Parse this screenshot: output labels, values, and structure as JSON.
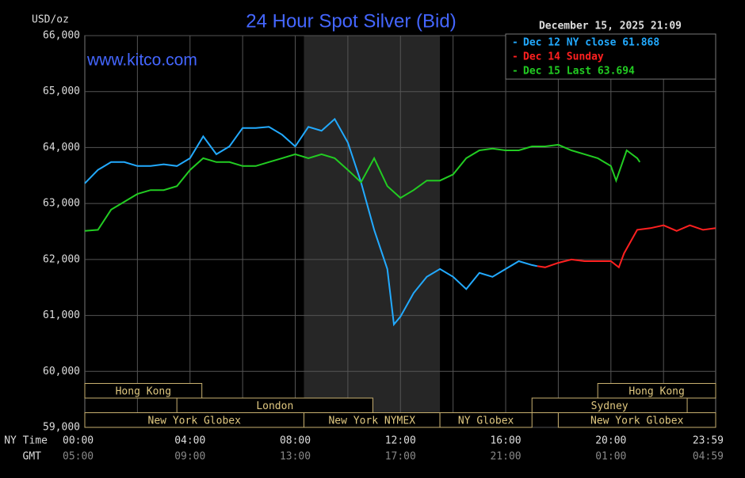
{
  "chart_data": {
    "type": "line",
    "title": "24 Hour Spot Silver (Bid)",
    "y_unit": "USD/oz",
    "watermark": "www.kitco.com",
    "timestamp": "December 15, 2025 21:09",
    "x_row_labels": [
      "NY Time",
      "GMT"
    ],
    "xlim": [
      0,
      23.983
    ],
    "xticks": [
      {
        "value": 0,
        "label": "00:00"
      },
      {
        "value": 4,
        "label": "04:00"
      },
      {
        "value": 8,
        "label": "08:00"
      },
      {
        "value": 12,
        "label": "12:00"
      },
      {
        "value": 16,
        "label": "16:00"
      },
      {
        "value": 20,
        "label": "20:00"
      },
      {
        "value": 23.983,
        "label": "23:59"
      }
    ],
    "xticks_gmt": [
      "05:00",
      "09:00",
      "13:00",
      "17:00",
      "21:00",
      "01:00",
      "04:59"
    ],
    "xgrid": [
      2,
      4,
      6,
      8,
      10,
      12,
      14,
      16,
      18,
      20,
      22
    ],
    "ylim": [
      59,
      66
    ],
    "yticks": [
      {
        "value": 59,
        "label": "59,000"
      },
      {
        "value": 60,
        "label": "60,000"
      },
      {
        "value": 61,
        "label": "61,000"
      },
      {
        "value": 62,
        "label": "62,000"
      },
      {
        "value": 63,
        "label": "63,000"
      },
      {
        "value": 64,
        "label": "64,000"
      },
      {
        "value": 65,
        "label": "65,000"
      },
      {
        "value": 66,
        "label": "66,000"
      }
    ],
    "grid": true,
    "shade": [
      8.33,
      13.5
    ],
    "sessions": [
      [
        {
          "label": "Hong Kong",
          "start": 0,
          "end": 4.45
        },
        {
          "label": "Hong Kong",
          "start": 19.5,
          "end": 23.983
        }
      ],
      [
        {
          "label": "London",
          "start": 3.5,
          "end": 10.95
        },
        {
          "label": "Sydney",
          "start": 17,
          "end": 22.9
        }
      ],
      [
        {
          "label": "New York Globex",
          "start": 0,
          "end": 8.33
        },
        {
          "label": "New York NYMEX",
          "start": 8.33,
          "end": 13.5
        },
        {
          "label": "NY Globex",
          "start": 13.5,
          "end": 17
        },
        {
          "label": "New York Globex",
          "start": 18,
          "end": 23.983
        }
      ]
    ],
    "legend": "top-right",
    "series": [
      {
        "name": "Dec 12 NY close 61.868",
        "color": "#22aaff",
        "x": [
          0,
          0.5,
          1,
          1.5,
          2,
          2.5,
          3,
          3.5,
          4,
          4.5,
          5,
          5.5,
          6,
          6.5,
          7,
          7.5,
          8,
          8.5,
          9,
          9.5,
          10,
          10.5,
          11,
          11.5,
          11.75,
          12,
          12.5,
          13,
          13.5,
          14,
          14.5,
          15,
          15.5,
          16,
          16.5,
          17,
          17.2
        ],
        "values": [
          63.36,
          63.6,
          63.74,
          63.74,
          63.67,
          63.67,
          63.7,
          63.67,
          63.81,
          64.2,
          63.88,
          64.02,
          64.35,
          64.35,
          64.37,
          64.23,
          64.02,
          64.37,
          64.3,
          64.51,
          64.09,
          63.38,
          62.53,
          61.83,
          60.84,
          60.98,
          61.4,
          61.69,
          61.83,
          61.69,
          61.47,
          61.76,
          61.69,
          61.83,
          61.97,
          61.9,
          61.88
        ]
      },
      {
        "name": "Dec 14 Sunday",
        "color": "#ff2020",
        "x": [
          17.2,
          17.5,
          18,
          18.5,
          19,
          19.5,
          20,
          20.3,
          20.5,
          21,
          21.5,
          22,
          22.5,
          23,
          23.5,
          23.983
        ],
        "values": [
          61.88,
          61.86,
          61.94,
          62,
          61.97,
          61.97,
          61.97,
          61.86,
          62.11,
          62.53,
          62.56,
          62.61,
          62.51,
          62.61,
          62.53,
          62.56
        ]
      },
      {
        "name": "Dec 15 Last 63.694",
        "color": "#22cc22",
        "x": [
          0,
          0.5,
          1,
          1.5,
          2,
          2.5,
          3,
          3.5,
          4,
          4.5,
          5,
          5.5,
          6,
          6.5,
          7,
          7.5,
          8,
          8.5,
          9,
          9.5,
          10,
          10.5,
          11,
          11.5,
          12,
          12.5,
          13,
          13.5,
          14,
          14.5,
          15,
          15.5,
          16,
          16.5,
          17,
          17.5,
          18,
          18.5,
          19,
          19.5,
          20,
          20.2,
          20.6,
          21,
          21.1
        ],
        "values": [
          62.51,
          62.53,
          62.89,
          63.03,
          63.17,
          63.24,
          63.24,
          63.31,
          63.6,
          63.81,
          63.74,
          63.74,
          63.67,
          63.67,
          63.74,
          63.81,
          63.88,
          63.81,
          63.88,
          63.81,
          63.6,
          63.38,
          63.81,
          63.31,
          63.1,
          63.24,
          63.41,
          63.41,
          63.52,
          63.81,
          63.95,
          63.98,
          63.95,
          63.95,
          64.02,
          64.02,
          64.05,
          63.95,
          63.88,
          63.81,
          63.67,
          63.41,
          63.95,
          63.81,
          63.74
        ]
      }
    ]
  }
}
